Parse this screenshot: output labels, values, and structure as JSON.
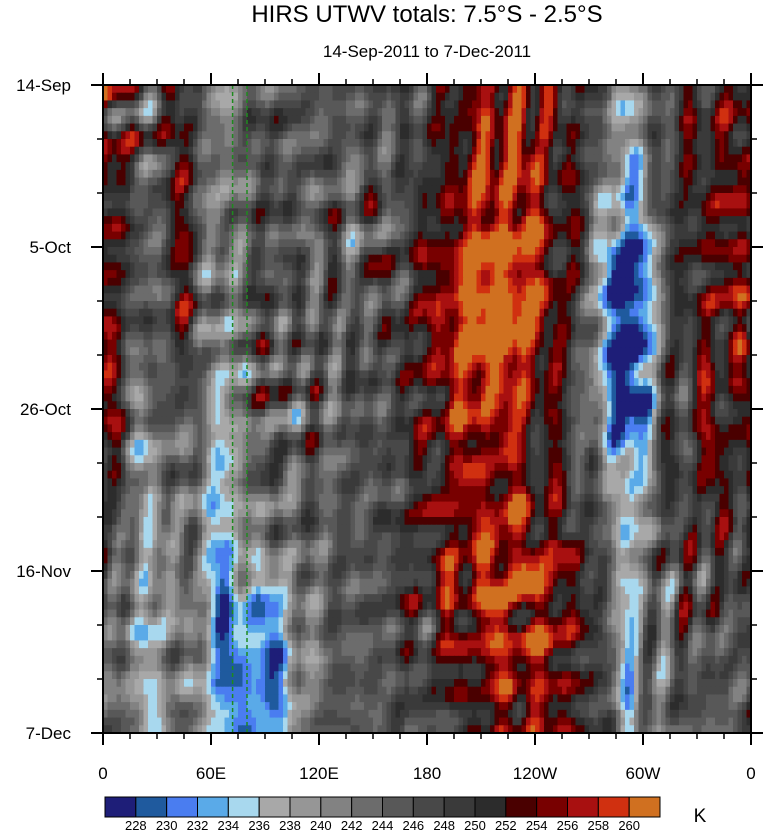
{
  "chart_data": {
    "type": "heatmap",
    "title": "HIRS UTWV totals: 7.5°S - 2.5°S",
    "subtitle": "14-Sep-2011 to 7-Dec-2011",
    "x_range_deg_east": [
      0,
      360
    ],
    "y_range_days": [
      0,
      84
    ],
    "x_ticks": [
      {
        "label": "0",
        "deg": 0
      },
      {
        "label": "60E",
        "deg": 60
      },
      {
        "label": "120E",
        "deg": 120
      },
      {
        "label": "180",
        "deg": 180
      },
      {
        "label": "120W",
        "deg": 240
      },
      {
        "label": "60W",
        "deg": 300
      },
      {
        "label": "0",
        "deg": 360
      }
    ],
    "y_ticks": [
      {
        "label": "14-Sep",
        "day": 0
      },
      {
        "label": "5-Oct",
        "day": 21
      },
      {
        "label": "26-Oct",
        "day": 42
      },
      {
        "label": "16-Nov",
        "day": 63
      },
      {
        "label": "7-Dec",
        "day": 84
      }
    ],
    "reference_lines_deg_east": [
      72,
      80
    ],
    "colorbar": {
      "unit": "K",
      "levels": [
        "228",
        "230",
        "232",
        "234",
        "236",
        "238",
        "240",
        "242",
        "244",
        "246",
        "248",
        "250",
        "252",
        "254",
        "256",
        "258",
        "260"
      ],
      "colors": [
        "#1e1e78",
        "#1f5a9e",
        "#4a7df0",
        "#5aaae8",
        "#a8d8ee",
        "#a8a8a8",
        "#969696",
        "#828282",
        "#6c6c6c",
        "#585858",
        "#484848",
        "#3a3a3a",
        "#2c2c2c",
        "#4a0000",
        "#780000",
        "#a81010",
        "#d03010",
        "#d07020"
      ]
    },
    "features": [
      {
        "name": "humid band",
        "lon_center": 65,
        "day_start": 0,
        "day_end": 84,
        "value": 233
      },
      {
        "name": "humid band",
        "lon_center": 25,
        "day_start": 10,
        "day_end": 84,
        "value": 235
      },
      {
        "name": "humid band",
        "lon_center": 292,
        "day_start": 0,
        "day_end": 84,
        "value": 234
      },
      {
        "name": "humid patch",
        "lon_center": 90,
        "day_start": 73,
        "day_end": 84,
        "value": 229
      },
      {
        "name": "humid patch",
        "lon_center": 290,
        "day_start": 27,
        "day_end": 37,
        "value": 230
      },
      {
        "name": "dry region",
        "lon_center": 225,
        "day_start": 0,
        "day_end": 30,
        "value": 258
      },
      {
        "name": "dry region",
        "lon_center": 205,
        "day_start": 30,
        "day_end": 65,
        "value": 254
      },
      {
        "name": "dry region",
        "lon_center": 240,
        "day_start": 65,
        "day_end": 84,
        "value": 255
      },
      {
        "name": "dry region",
        "lon_center": 345,
        "day_start": 5,
        "day_end": 50,
        "value": 253
      },
      {
        "name": "dry region",
        "lon_center": 45,
        "day_start": 5,
        "day_end": 30,
        "value": 253
      }
    ]
  }
}
